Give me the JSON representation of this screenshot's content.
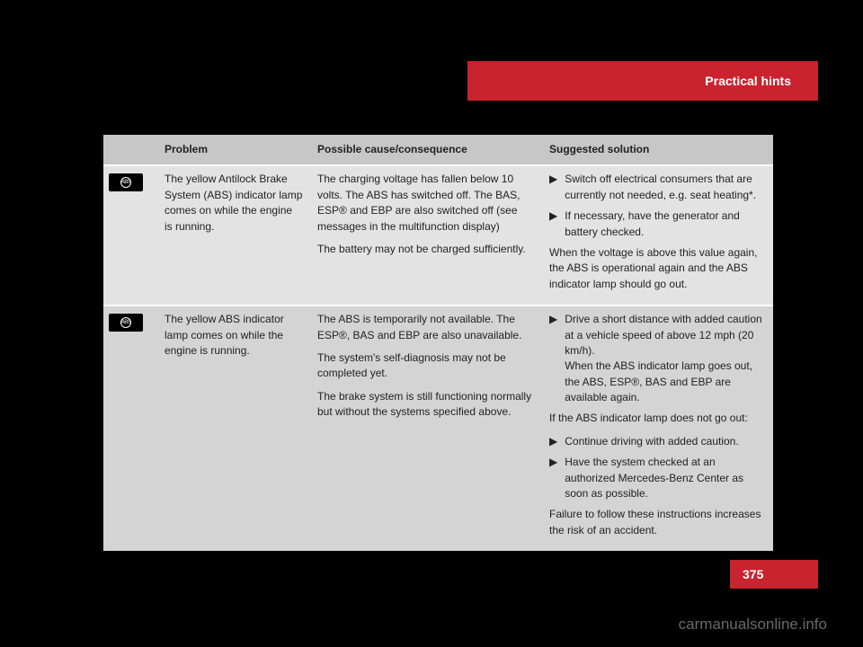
{
  "header": "Practical hints",
  "pageNumber": "375",
  "watermark": "carmanualsonline.info",
  "table": {
    "headers": {
      "problem": "Problem",
      "cause": "Possible cause/consequence",
      "solution": "Suggested solution"
    },
    "rows": [
      {
        "problem": "The yellow Antilock Brake System (ABS) indicator lamp comes on while the engine is running.",
        "cause_p1": "The charging voltage has fallen below 10 volts. The ABS has switched off. The BAS, ESP® and EBP are also switched off (see messages in the multifunction display)",
        "cause_p2": "The battery may not be charged sufficiently.",
        "sol_b1": "Switch off electrical consumers that are currently not needed, e.g. seat heating*.",
        "sol_b2": "If necessary, have the generator and battery checked.",
        "sol_p1": "When the voltage is above this value again, the ABS is operational again and the ABS indicator lamp should go out."
      },
      {
        "problem": "The yellow ABS indicator lamp comes on while the engine is running.",
        "cause_p1": "The ABS is temporarily not available. The ESP®, BAS and EBP are also unavailable.",
        "cause_p2": "The system's self-diagnosis may not be completed yet.",
        "cause_p3": "The brake system is still functioning normally but without the systems specified above.",
        "sol_b1": "Drive a short distance with added caution at a vehicle speed of above 12 mph (20 km/h).\nWhen the ABS indicator lamp goes out, the ABS, ESP®, BAS and EBP are available again.",
        "sol_p1": "If the ABS indicator lamp does not go out:",
        "sol_b2": "Continue driving with added caution.",
        "sol_b3": "Have the system checked at an authorized Mercedes-Benz Center as soon as possible.",
        "sol_p2": "Failure to follow these instructions increases the risk of an accident."
      }
    ]
  }
}
